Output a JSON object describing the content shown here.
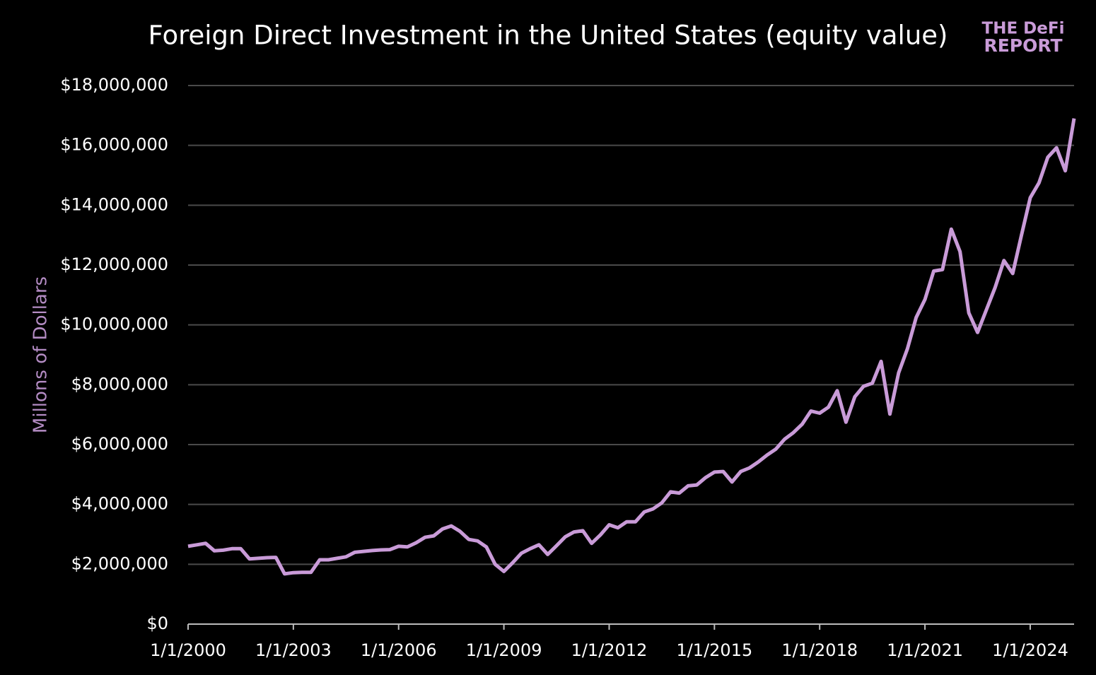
{
  "chart_data": {
    "type": "line",
    "title": "Foreign Direct Investment in the United States (equity value)",
    "logo": {
      "line1": "THE DeFi",
      "line2": "REPORT"
    },
    "y_label": "Millons of Dollars",
    "color": "#c99bd8",
    "grid": true,
    "x": [
      2000,
      2000.25,
      2000.5,
      2000.75,
      2001,
      2001.25,
      2001.5,
      2001.75,
      2002,
      2002.25,
      2002.5,
      2002.75,
      2003,
      2003.25,
      2003.5,
      2003.75,
      2004,
      2004.25,
      2004.5,
      2004.75,
      2005,
      2005.25,
      2005.5,
      2005.75,
      2006,
      2006.25,
      2006.5,
      2006.75,
      2007,
      2007.25,
      2007.5,
      2007.75,
      2008,
      2008.25,
      2008.5,
      2008.75,
      2009,
      2009.25,
      2009.5,
      2009.75,
      2010,
      2010.25,
      2010.5,
      2010.75,
      2011,
      2011.25,
      2011.5,
      2011.75,
      2012,
      2012.25,
      2012.5,
      2012.75,
      2013,
      2013.25,
      2013.5,
      2013.75,
      2014,
      2014.25,
      2014.5,
      2014.75,
      2015,
      2015.25,
      2015.5,
      2015.75,
      2016,
      2016.25,
      2016.5,
      2016.75,
      2017,
      2017.25,
      2017.5,
      2017.75,
      2018,
      2018.25,
      2018.5,
      2018.75,
      2019,
      2019.25,
      2019.5,
      2019.75,
      2020,
      2020.25,
      2020.5,
      2020.75,
      2021,
      2021.25,
      2021.5,
      2021.75,
      2022,
      2022.25,
      2022.5,
      2022.75,
      2023,
      2023.25,
      2023.5,
      2023.75,
      2024,
      2024.25,
      2024.5,
      2024.75,
      2025,
      2025.25
    ],
    "values": [
      2600000,
      2650000,
      2700000,
      2450000,
      2470000,
      2520000,
      2520000,
      2180000,
      2200000,
      2220000,
      2230000,
      1680000,
      1720000,
      1730000,
      1730000,
      2150000,
      2150000,
      2200000,
      2250000,
      2400000,
      2430000,
      2460000,
      2480000,
      2490000,
      2600000,
      2580000,
      2720000,
      2900000,
      2950000,
      3180000,
      3280000,
      3100000,
      2830000,
      2780000,
      2580000,
      2000000,
      1760000,
      2050000,
      2370000,
      2520000,
      2650000,
      2330000,
      2620000,
      2920000,
      3080000,
      3120000,
      2700000,
      2980000,
      3320000,
      3220000,
      3420000,
      3420000,
      3750000,
      3850000,
      4050000,
      4420000,
      4380000,
      4620000,
      4650000,
      4900000,
      5080000,
      5100000,
      4750000,
      5100000,
      5220000,
      5420000,
      5650000,
      5850000,
      6180000,
      6400000,
      6680000,
      7120000,
      7050000,
      7250000,
      7800000,
      6750000,
      7600000,
      7950000,
      8050000,
      8780000,
      7020000,
      8400000,
      9200000,
      10250000,
      10850000,
      11800000,
      11850000,
      13200000,
      12450000,
      10400000,
      9750000,
      10500000,
      11250000,
      12150000,
      11720000,
      13000000,
      14250000,
      14750000,
      15600000,
      15920000,
      15150000,
      16900000
    ],
    "xlim": [
      2000,
      2025.25
    ],
    "xticks": [
      {
        "value": 2000,
        "label": "1/1/2000"
      },
      {
        "value": 2003,
        "label": "1/1/2003"
      },
      {
        "value": 2006,
        "label": "1/1/2006"
      },
      {
        "value": 2009,
        "label": "1/1/2009"
      },
      {
        "value": 2012,
        "label": "1/1/2012"
      },
      {
        "value": 2015,
        "label": "1/1/2015"
      },
      {
        "value": 2018,
        "label": "1/1/2018"
      },
      {
        "value": 2021,
        "label": "1/1/2021"
      },
      {
        "value": 2024,
        "label": "1/1/2024"
      }
    ],
    "ylim": [
      0,
      18000000
    ],
    "yticks": [
      {
        "value": 0,
        "label": "$0"
      },
      {
        "value": 2000000,
        "label": "$2,000,000"
      },
      {
        "value": 4000000,
        "label": "$4,000,000"
      },
      {
        "value": 6000000,
        "label": "$6,000,000"
      },
      {
        "value": 8000000,
        "label": "$8,000,000"
      },
      {
        "value": 10000000,
        "label": "$10,000,000"
      },
      {
        "value": 12000000,
        "label": "$12,000,000"
      },
      {
        "value": 14000000,
        "label": "$14,000,000"
      },
      {
        "value": 16000000,
        "label": "$16,000,000"
      },
      {
        "value": 18000000,
        "label": "$18,000,000"
      }
    ]
  }
}
